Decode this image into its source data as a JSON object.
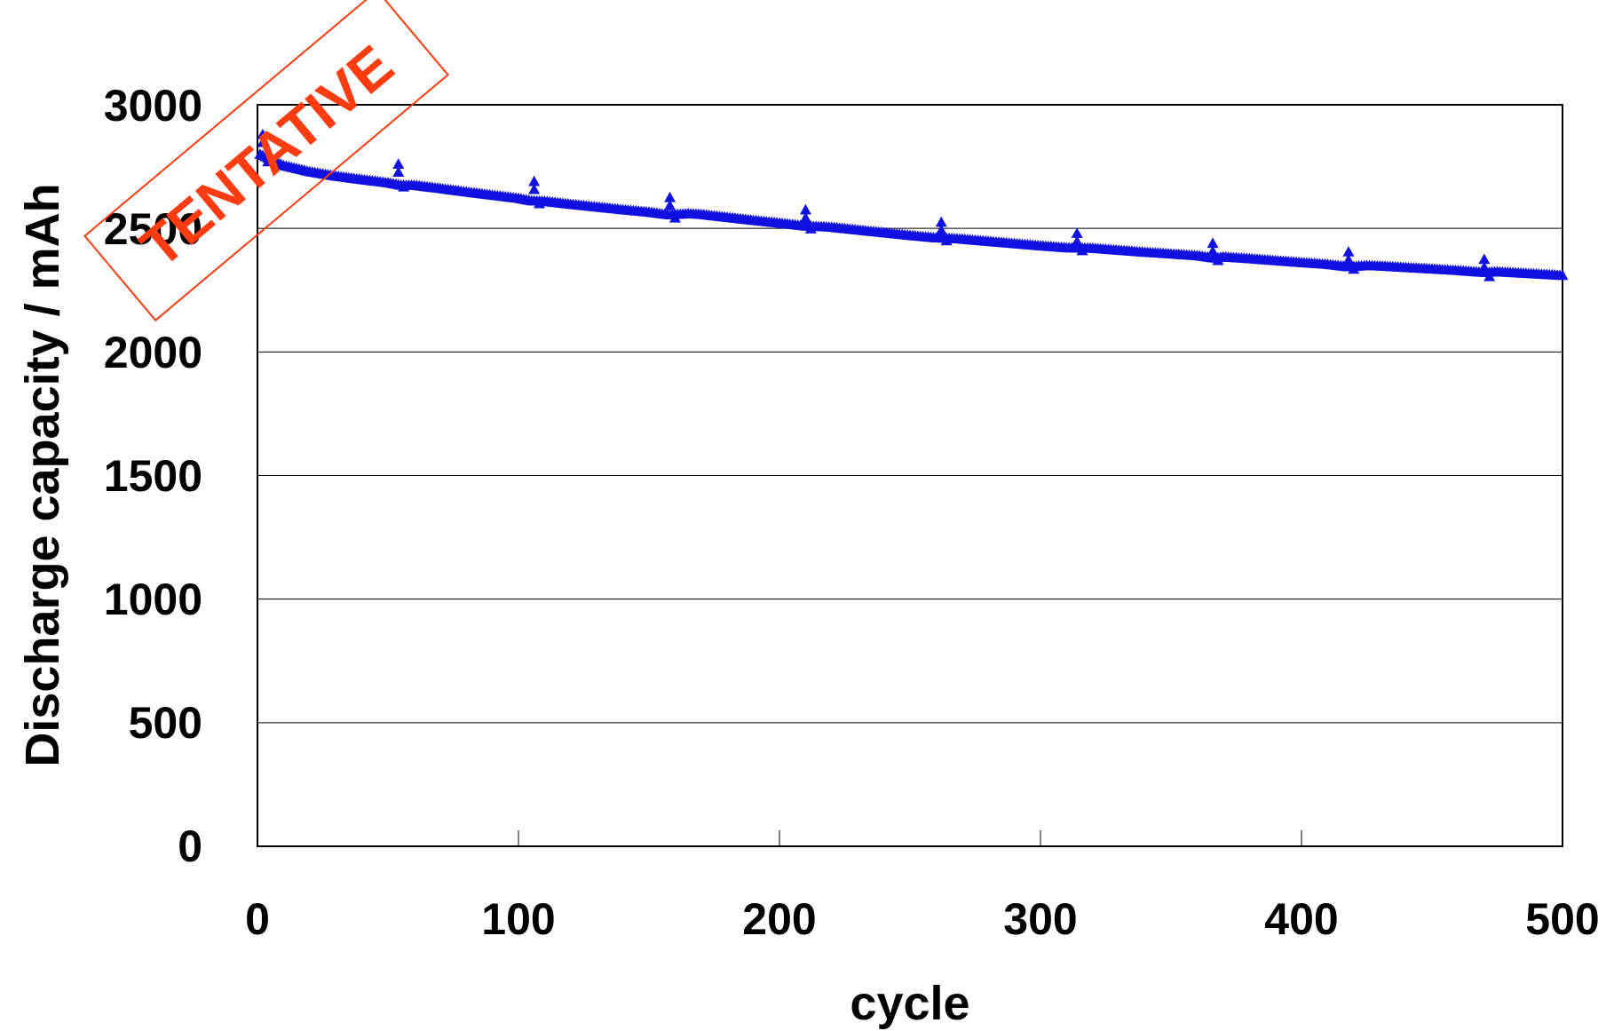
{
  "chart_data": {
    "type": "scatter",
    "title": "",
    "xlabel": "cycle",
    "ylabel": "Discharge capacity / mAh",
    "xlim": [
      0,
      500
    ],
    "ylim": [
      0,
      3000
    ],
    "x_ticks": [
      "0",
      "100",
      "200",
      "300",
      "400",
      "500"
    ],
    "y_ticks": [
      "0",
      "500",
      "1000",
      "1500",
      "2000",
      "2500",
      "3000"
    ],
    "grid": "horizontal",
    "marker": "triangle",
    "color": "#1010e0",
    "stamp": "TENTATIVE",
    "stamp_color": "#ff3b10",
    "series": [
      {
        "main_curve": [
          [
            1,
            2800
          ],
          [
            5,
            2780
          ],
          [
            10,
            2755
          ],
          [
            20,
            2730
          ],
          [
            30,
            2712
          ],
          [
            40,
            2698
          ],
          [
            50,
            2685
          ],
          [
            55,
            2675
          ],
          [
            60,
            2675
          ],
          [
            70,
            2662
          ],
          [
            80,
            2648
          ],
          [
            90,
            2635
          ],
          [
            100,
            2622
          ],
          [
            105,
            2612
          ],
          [
            110,
            2610
          ],
          [
            120,
            2598
          ],
          [
            130,
            2587
          ],
          [
            140,
            2576
          ],
          [
            150,
            2566
          ],
          [
            158,
            2555
          ],
          [
            165,
            2560
          ],
          [
            170,
            2557
          ],
          [
            180,
            2545
          ],
          [
            190,
            2533
          ],
          [
            200,
            2522
          ],
          [
            210,
            2510
          ],
          [
            215,
            2508
          ],
          [
            220,
            2505
          ],
          [
            230,
            2494
          ],
          [
            240,
            2483
          ],
          [
            250,
            2472
          ],
          [
            260,
            2462
          ],
          [
            265,
            2460
          ],
          [
            270,
            2457
          ],
          [
            280,
            2448
          ],
          [
            290,
            2439
          ],
          [
            300,
            2430
          ],
          [
            310,
            2422
          ],
          [
            320,
            2420
          ],
          [
            330,
            2412
          ],
          [
            340,
            2404
          ],
          [
            350,
            2397
          ],
          [
            360,
            2390
          ],
          [
            367,
            2380
          ],
          [
            370,
            2385
          ],
          [
            380,
            2378
          ],
          [
            390,
            2370
          ],
          [
            400,
            2362
          ],
          [
            410,
            2355
          ],
          [
            418,
            2345
          ],
          [
            425,
            2350
          ],
          [
            430,
            2348
          ],
          [
            440,
            2342
          ],
          [
            450,
            2336
          ],
          [
            460,
            2330
          ],
          [
            470,
            2322
          ],
          [
            475,
            2325
          ],
          [
            480,
            2322
          ],
          [
            490,
            2316
          ],
          [
            500,
            2310
          ]
        ],
        "spikes": [
          [
            2,
            2880
          ],
          [
            54,
            2760
          ],
          [
            106,
            2690
          ],
          [
            158,
            2625
          ],
          [
            210,
            2575
          ],
          [
            262,
            2525
          ],
          [
            314,
            2480
          ],
          [
            366,
            2440
          ],
          [
            418,
            2405
          ],
          [
            470,
            2375
          ]
        ],
        "dips": [
          [
            4,
            2770
          ],
          [
            56,
            2668
          ],
          [
            108,
            2600
          ],
          [
            160,
            2542
          ],
          [
            212,
            2498
          ],
          [
            264,
            2450
          ],
          [
            316,
            2410
          ],
          [
            368,
            2370
          ],
          [
            420,
            2335
          ],
          [
            472,
            2305
          ]
        ]
      }
    ]
  }
}
